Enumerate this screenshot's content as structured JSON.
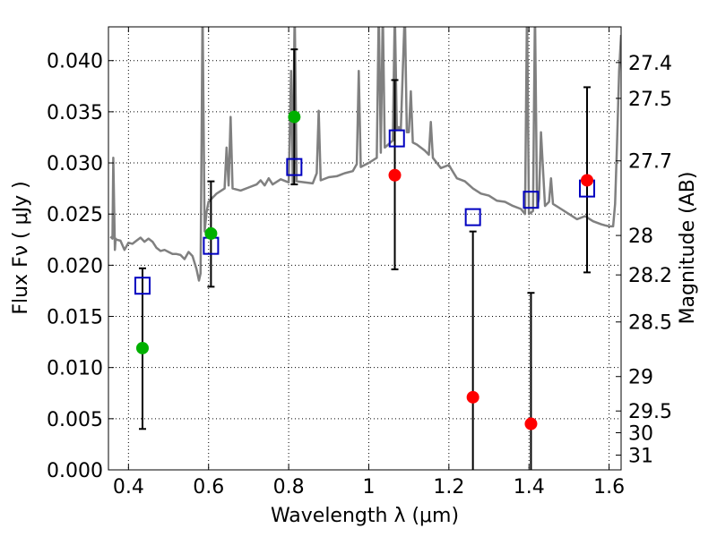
{
  "chart_data": {
    "type": "scatter",
    "xlabel": "Wavelength  λ (μm)",
    "ylabel": "Flux  Fν  ( μJy )",
    "y2label": "Magnitude (AB)",
    "xlim": [
      0.35,
      1.63
    ],
    "ylim": [
      0.0,
      0.0433
    ],
    "grid": true,
    "x_ticks": [
      0.4,
      0.6,
      0.8,
      1.0,
      1.2,
      1.4,
      1.6
    ],
    "x_tick_labels": [
      "0.4",
      "0.6",
      "0.8",
      "1",
      "1.2",
      "1.4",
      "1.6"
    ],
    "y_ticks": [
      0.0,
      0.005,
      0.01,
      0.015,
      0.02,
      0.025,
      0.03,
      0.035,
      0.04
    ],
    "y_tick_labels": [
      "0.000",
      "0.005",
      "0.010",
      "0.015",
      "0.020",
      "0.025",
      "0.030",
      "0.035",
      "0.040"
    ],
    "mag_ticks": [
      27.4,
      27.5,
      27.7,
      28,
      28.2,
      28.5,
      29,
      29.5,
      30,
      31
    ],
    "mag_tick_labels": [
      "27.4",
      "27.5",
      "27.7",
      "28",
      "28.2",
      "28.5",
      "29",
      "29.5",
      "30",
      "31"
    ],
    "colors": {
      "spectrum": "#808080",
      "detections": "#00b000",
      "upper_limits": "#ff0000",
      "model": "#0000c0",
      "errorbar": "#000000"
    },
    "spectrum": {
      "x": [
        0.355,
        0.36,
        0.362,
        0.366,
        0.368,
        0.37,
        0.38,
        0.39,
        0.4,
        0.41,
        0.42,
        0.43,
        0.44,
        0.45,
        0.46,
        0.47,
        0.48,
        0.49,
        0.5,
        0.51,
        0.52,
        0.53,
        0.54,
        0.55,
        0.56,
        0.57,
        0.576,
        0.58,
        0.585,
        0.59,
        0.595,
        0.6,
        0.62,
        0.64,
        0.645,
        0.65,
        0.655,
        0.66,
        0.68,
        0.7,
        0.72,
        0.73,
        0.74,
        0.75,
        0.76,
        0.78,
        0.8,
        0.806,
        0.81,
        0.815,
        0.82,
        0.84,
        0.86,
        0.87,
        0.875,
        0.88,
        0.9,
        0.92,
        0.94,
        0.96,
        0.97,
        0.975,
        0.98,
        0.99,
        1.0,
        1.02,
        1.025,
        1.03,
        1.035,
        1.04,
        1.06,
        1.065,
        1.07,
        1.075,
        1.08,
        1.09,
        1.095,
        1.1,
        1.105,
        1.11,
        1.12,
        1.14,
        1.15,
        1.155,
        1.16,
        1.18,
        1.2,
        1.22,
        1.24,
        1.26,
        1.28,
        1.3,
        1.32,
        1.34,
        1.36,
        1.38,
        1.39,
        1.395,
        1.4,
        1.41,
        1.415,
        1.42,
        1.425,
        1.43,
        1.44,
        1.45,
        1.455,
        1.46,
        1.48,
        1.5,
        1.52,
        1.54,
        1.56,
        1.58,
        1.59,
        1.6,
        1.61,
        1.615,
        1.62,
        1.625,
        1.63
      ],
      "y": [
        0.0228,
        0.0226,
        0.0305,
        0.0215,
        0.0226,
        0.0225,
        0.0224,
        0.0215,
        0.0222,
        0.0221,
        0.0224,
        0.0227,
        0.0223,
        0.0226,
        0.0223,
        0.0217,
        0.0214,
        0.0215,
        0.0213,
        0.0211,
        0.0211,
        0.021,
        0.0206,
        0.0213,
        0.0209,
        0.0196,
        0.0185,
        0.0192,
        0.045,
        0.0233,
        0.0252,
        0.0262,
        0.027,
        0.0275,
        0.0315,
        0.0278,
        0.0345,
        0.0275,
        0.0273,
        0.0276,
        0.0279,
        0.0283,
        0.0278,
        0.0285,
        0.0279,
        0.0284,
        0.0281,
        0.039,
        0.028,
        0.045,
        0.0282,
        0.0281,
        0.028,
        0.029,
        0.0351,
        0.0283,
        0.0286,
        0.0287,
        0.029,
        0.0292,
        0.0299,
        0.039,
        0.0296,
        0.0298,
        0.03,
        0.0305,
        0.045,
        0.031,
        0.045,
        0.0315,
        0.0322,
        0.045,
        0.0332,
        0.0335,
        0.0332,
        0.045,
        0.033,
        0.033,
        0.037,
        0.032,
        0.0318,
        0.0312,
        0.0308,
        0.034,
        0.0305,
        0.0295,
        0.0298,
        0.0285,
        0.0282,
        0.0275,
        0.027,
        0.0268,
        0.0263,
        0.0262,
        0.0258,
        0.0255,
        0.025,
        0.045,
        0.025,
        0.0253,
        0.045,
        0.0257,
        0.0265,
        0.033,
        0.0258,
        0.0262,
        0.0285,
        0.026,
        0.0255,
        0.025,
        0.0245,
        0.0248,
        0.0243,
        0.024,
        0.0239,
        0.0238,
        0.0238,
        0.026,
        0.032,
        0.039,
        0.0425
      ]
    },
    "detections": [
      {
        "x": 0.435,
        "y": 0.0119,
        "err_low": 0.004,
        "err_high": 0.0197
      },
      {
        "x": 0.606,
        "y": 0.0231,
        "err_low": 0.0179,
        "err_high": 0.0282
      },
      {
        "x": 0.814,
        "y": 0.0345,
        "err_low": 0.0279,
        "err_high": 0.0411
      }
    ],
    "upper_limits": [
      {
        "x": 1.065,
        "y": 0.0288,
        "err_low": 0.0196,
        "err_high": 0.0381
      },
      {
        "x": 1.26,
        "y": 0.0071,
        "err_low": 0.0,
        "err_high": 0.0233
      },
      {
        "x": 1.405,
        "y": 0.0045,
        "err_low": 0.0,
        "err_high": 0.0173
      },
      {
        "x": 1.545,
        "y": 0.0283,
        "err_low": 0.0193,
        "err_high": 0.0374
      }
    ],
    "model": [
      {
        "x": 0.435,
        "y": 0.018
      },
      {
        "x": 0.606,
        "y": 0.0219
      },
      {
        "x": 0.814,
        "y": 0.0296
      },
      {
        "x": 1.07,
        "y": 0.0324
      },
      {
        "x": 1.26,
        "y": 0.0247
      },
      {
        "x": 1.405,
        "y": 0.0264
      },
      {
        "x": 1.545,
        "y": 0.0275
      }
    ]
  }
}
